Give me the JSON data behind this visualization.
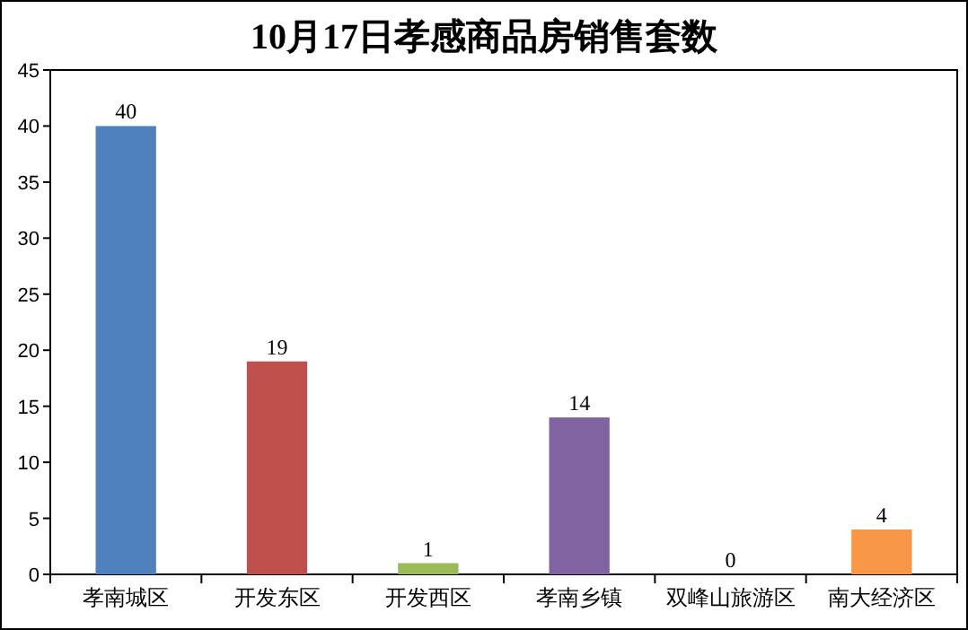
{
  "chart_data": {
    "type": "bar",
    "title": "10月17日孝感商品房销售套数",
    "categories": [
      "孝南城区",
      "开发东区",
      "开发西区",
      "孝南乡镇",
      "双峰山旅游区",
      "南大经济区"
    ],
    "values": [
      40,
      19,
      1,
      14,
      0,
      4
    ],
    "colors": [
      "#4f81bd",
      "#c0504d",
      "#9bbb59",
      "#8064a2",
      "#4bacc6",
      "#f79646"
    ],
    "ylim": [
      0,
      45
    ],
    "yticks": [
      0,
      5,
      10,
      15,
      20,
      25,
      30,
      35,
      40,
      45
    ],
    "data_labels": true
  }
}
